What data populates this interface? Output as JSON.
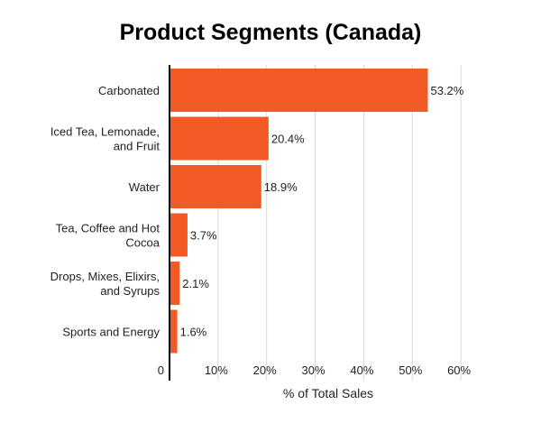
{
  "chart_data": {
    "type": "bar",
    "orientation": "horizontal",
    "title": "Product Segments (Canada)",
    "xlabel": "% of Total Sales",
    "ylabel": "",
    "categories": [
      [
        "Carbonated"
      ],
      [
        "Iced Tea, Lemonade,",
        "and Fruit"
      ],
      [
        "Water"
      ],
      [
        "Tea, Coffee and Hot",
        "Cocoa"
      ],
      [
        "Drops, Mixes, Elixirs,",
        "and Syrups"
      ],
      [
        "Sports and Energy"
      ]
    ],
    "values": [
      53.2,
      20.4,
      18.9,
      3.7,
      2.1,
      1.6
    ],
    "value_labels": [
      "53.2%",
      "20.4%",
      "18.9%",
      "3.7%",
      "2.1%",
      "1.6%"
    ],
    "xlim": [
      0,
      60
    ],
    "xticks": [
      0,
      10,
      20,
      30,
      40,
      50,
      60
    ],
    "xtick_labels": [
      "0",
      "10%",
      "20%",
      "30%",
      "40%",
      "50%",
      "60%"
    ],
    "grid": "vertical",
    "legend": "none",
    "bar_color": "#f15a24"
  }
}
